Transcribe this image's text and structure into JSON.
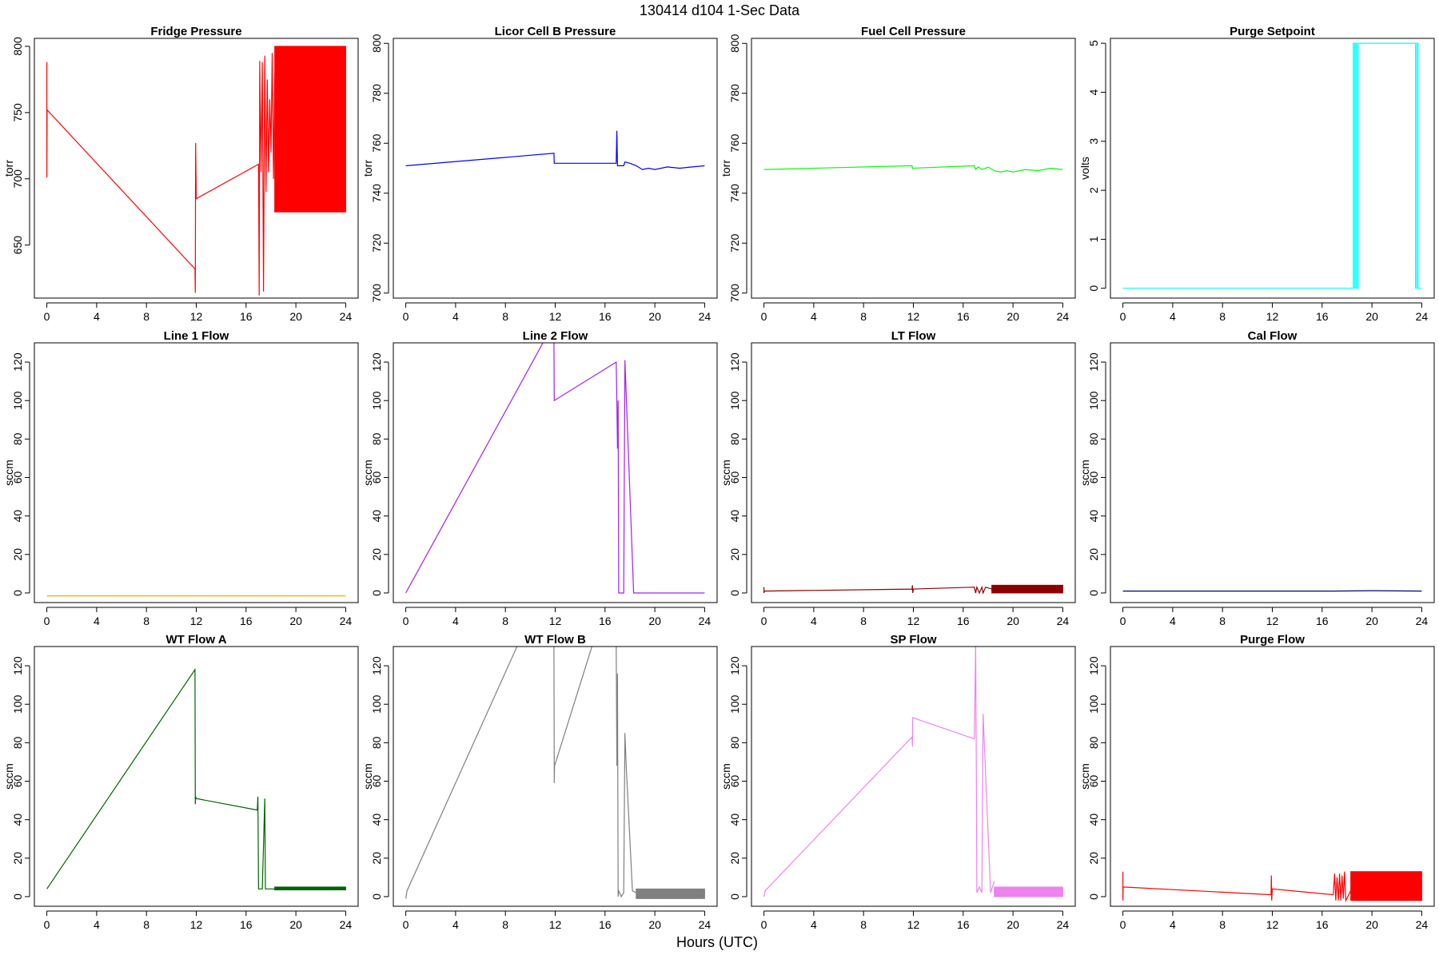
{
  "figure": {
    "title": "130414   d104   1-Sec Data",
    "xlabel": "Hours (UTC)"
  },
  "chart_data": [
    {
      "type": "line",
      "title": "Fridge Pressure",
      "ylabel": "torr",
      "color": "#ff0000",
      "xlim": [
        -1,
        25
      ],
      "ylim": [
        610,
        806
      ],
      "xticks": [
        0,
        4,
        8,
        12,
        16,
        20,
        24
      ],
      "yticks": [
        650,
        700,
        750,
        800
      ],
      "series": [
        {
          "x": [
            0,
            0,
            0.02,
            11.9,
            11.92,
            11.95,
            12,
            17,
            17.05,
            17.1,
            17.2,
            17.3,
            17.4,
            17.5,
            17.6,
            17.7,
            17.8,
            17.9,
            18,
            18.1,
            18.2,
            18.3
          ],
          "y": [
            788,
            701,
            752,
            632,
            614,
            727,
            685,
            711,
            612,
            789,
            705,
            788,
            615,
            793,
            690,
            775,
            705,
            760,
            720,
            795,
            700,
            780
          ]
        }
      ],
      "band": {
        "x0": 18.3,
        "x1": 24,
        "ymin": 675,
        "ymax": 800
      }
    },
    {
      "type": "line",
      "title": "Licor Cell B Pressure",
      "ylabel": "torr",
      "color": "#0000ff",
      "xlim": [
        -1,
        25
      ],
      "ylim": [
        698,
        802
      ],
      "xticks": [
        0,
        4,
        8,
        12,
        16,
        20,
        24
      ],
      "yticks": [
        700,
        720,
        740,
        760,
        780,
        800
      ],
      "series": [
        {
          "x": [
            0,
            11.9,
            11.92,
            16.9,
            16.95,
            17,
            17.05,
            17.1,
            17.5,
            17.6,
            18,
            18.5,
            19,
            19.5,
            20,
            21,
            22,
            23,
            24
          ],
          "y": [
            751,
            756,
            752,
            752,
            765,
            751,
            751,
            751,
            751,
            752.5,
            752,
            751,
            749.5,
            750,
            749.5,
            750.5,
            750,
            750.5,
            751
          ]
        }
      ]
    },
    {
      "type": "line",
      "title": "Fuel Cell Pressure",
      "ylabel": "torr",
      "color": "#00ff00",
      "xlim": [
        -1,
        25
      ],
      "ylim": [
        698,
        802
      ],
      "xticks": [
        0,
        4,
        8,
        12,
        16,
        20,
        24
      ],
      "yticks": [
        700,
        720,
        740,
        760,
        780,
        800
      ],
      "series": [
        {
          "x": [
            0,
            11.9,
            11.92,
            16.9,
            17,
            17.2,
            17.5,
            17.8,
            18,
            18.5,
            19,
            19.5,
            20,
            21,
            22,
            23,
            24
          ],
          "y": [
            749.5,
            751,
            750,
            751,
            749.5,
            750.5,
            749.5,
            750,
            750.5,
            749,
            748.5,
            749,
            748.5,
            749.5,
            749,
            750,
            749.5
          ]
        }
      ]
    },
    {
      "type": "line",
      "title": "Purge Setpoint",
      "ylabel": "volts",
      "color": "#00ffff",
      "xlim": [
        -1,
        25
      ],
      "ylim": [
        -0.2,
        5.1
      ],
      "xticks": [
        0,
        4,
        8,
        12,
        16,
        20,
        24
      ],
      "yticks": [
        0,
        1,
        2,
        3,
        4,
        5
      ],
      "series": [
        {
          "x": [
            0,
            18.5,
            18.5,
            18.6,
            18.6,
            18.7,
            18.7,
            18.8,
            18.8,
            18.9,
            18.9,
            23.5,
            23.5,
            23.6,
            23.6,
            23.7,
            23.7,
            24
          ],
          "y": [
            0,
            0,
            5,
            5,
            0,
            0,
            5,
            5,
            0,
            0,
            5,
            5,
            0,
            0,
            5,
            5,
            0,
            0
          ]
        }
      ]
    },
    {
      "type": "line",
      "title": "Line 1 Flow",
      "ylabel": "sccm",
      "color": "#ffa500",
      "xlim": [
        -1,
        25
      ],
      "ylim": [
        -5,
        130
      ],
      "xticks": [
        0,
        4,
        8,
        12,
        16,
        20,
        24
      ],
      "yticks": [
        0,
        20,
        40,
        60,
        80,
        100,
        120
      ],
      "series": [
        {
          "x": [
            0,
            12,
            17,
            24
          ],
          "y": [
            -1.5,
            -1.5,
            -1.5,
            -1.5
          ]
        }
      ]
    },
    {
      "type": "line",
      "title": "Line 2 Flow",
      "ylabel": "sccm",
      "color": "#a020f0",
      "xlim": [
        -1,
        25
      ],
      "ylim": [
        -5,
        130
      ],
      "xticks": [
        0,
        4,
        8,
        12,
        16,
        20,
        24
      ],
      "yticks": [
        0,
        20,
        40,
        60,
        80,
        100,
        120
      ],
      "series": [
        {
          "x": [
            0,
            11.1,
            11.9,
            11.92,
            16.9,
            16.95,
            17,
            17.05,
            17.1,
            17.3,
            17.5,
            17.6,
            18.3,
            24
          ],
          "y": [
            0,
            131,
            131,
            100,
            120,
            100,
            75,
            100,
            0,
            0,
            0,
            121,
            0,
            0
          ]
        }
      ]
    },
    {
      "type": "line",
      "title": "LT Flow",
      "ylabel": "sccm",
      "color": "#8b0000",
      "xlim": [
        -1,
        25
      ],
      "ylim": [
        -5,
        130
      ],
      "xticks": [
        0,
        4,
        8,
        12,
        16,
        20,
        24
      ],
      "yticks": [
        0,
        20,
        40,
        60,
        80,
        100,
        120
      ],
      "series": [
        {
          "x": [
            0,
            0,
            0.02,
            11.9,
            11.92,
            11.95,
            12,
            16.9,
            17,
            17.1,
            17.3,
            17.5,
            17.6,
            17.8,
            18.3
          ],
          "y": [
            3,
            0,
            1,
            2,
            4,
            0,
            2,
            3,
            0,
            3,
            0,
            3,
            0,
            3,
            2
          ]
        }
      ],
      "band": {
        "x0": 18.3,
        "x1": 24,
        "ymin": 0,
        "ymax": 4
      }
    },
    {
      "type": "line",
      "title": "Cal Flow",
      "ylabel": "sccm",
      "color": "#000080",
      "xlim": [
        -1,
        25
      ],
      "ylim": [
        -5,
        130
      ],
      "xticks": [
        0,
        4,
        8,
        12,
        16,
        20,
        24
      ],
      "yticks": [
        0,
        20,
        40,
        60,
        80,
        100,
        120
      ],
      "series": [
        {
          "x": [
            0,
            12,
            17,
            20,
            24
          ],
          "y": [
            1,
            1,
            1,
            1.2,
            1
          ]
        }
      ]
    },
    {
      "type": "line",
      "title": "WT Flow A",
      "ylabel": "sccm",
      "color": "#006400",
      "xlim": [
        -1,
        25
      ],
      "ylim": [
        -5,
        130
      ],
      "xticks": [
        0,
        4,
        8,
        12,
        16,
        20,
        24
      ],
      "yticks": [
        0,
        20,
        40,
        60,
        80,
        100,
        120
      ],
      "series": [
        {
          "x": [
            0,
            11.9,
            11.92,
            11.95,
            12,
            16.9,
            16.95,
            17,
            17.05,
            17.3,
            17.5,
            17.55,
            18.3,
            24
          ],
          "y": [
            4,
            118,
            48,
            52,
            51,
            45,
            52,
            4,
            4,
            4,
            51,
            4,
            4,
            4
          ]
        }
      ],
      "band": {
        "x0": 18.3,
        "x1": 24,
        "ymin": 3.5,
        "ymax": 5
      }
    },
    {
      "type": "line",
      "title": "WT Flow B",
      "ylabel": "sccm",
      "color": "#808080",
      "xlim": [
        -1,
        25
      ],
      "ylim": [
        -5,
        130
      ],
      "xticks": [
        0,
        4,
        8,
        12,
        16,
        20,
        24
      ],
      "yticks": [
        0,
        20,
        40,
        60,
        80,
        100,
        120
      ],
      "series": [
        {
          "x": [
            0,
            0.1,
            9,
            11.9,
            11.92,
            11.95,
            15,
            16.9,
            16.95,
            17,
            17.05,
            17.1,
            17.3,
            17.5,
            17.6,
            17.7,
            18.2,
            18.5
          ],
          "y": [
            -1,
            3,
            131,
            131,
            59,
            68,
            131,
            131,
            68,
            116,
            0,
            3,
            0,
            2,
            85,
            68,
            3,
            2
          ]
        }
      ],
      "band": {
        "x0": 18.5,
        "x1": 24,
        "ymin": -1,
        "ymax": 4
      }
    },
    {
      "type": "line",
      "title": "SP Flow",
      "ylabel": "sccm",
      "color": "#ee82ee",
      "xlim": [
        -1,
        25
      ],
      "ylim": [
        -5,
        130
      ],
      "xticks": [
        0,
        4,
        8,
        12,
        16,
        20,
        24
      ],
      "yticks": [
        0,
        20,
        40,
        60,
        80,
        100,
        120
      ],
      "series": [
        {
          "x": [
            0,
            0.1,
            11.9,
            11.92,
            11.95,
            16.9,
            17,
            17.05,
            17.1,
            17.3,
            17.5,
            17.6,
            18.2,
            18.5
          ],
          "y": [
            0,
            3,
            83,
            78,
            93,
            82,
            131,
            72,
            2,
            5,
            2,
            95,
            2,
            8
          ]
        }
      ],
      "band": {
        "x0": 18.5,
        "x1": 24,
        "ymin": 0,
        "ymax": 5
      }
    },
    {
      "type": "line",
      "title": "Purge Flow",
      "ylabel": "sccm",
      "color": "#ff0000",
      "xlim": [
        -1,
        25
      ],
      "ylim": [
        -5,
        130
      ],
      "xticks": [
        0,
        4,
        8,
        12,
        16,
        20,
        24
      ],
      "yticks": [
        0,
        20,
        40,
        60,
        80,
        100,
        120
      ],
      "series": [
        {
          "x": [
            0,
            0,
            0.02,
            11.9,
            11.92,
            11.95,
            12,
            16.9,
            17,
            17.1,
            17.2,
            17.3,
            17.4,
            17.5,
            17.6,
            17.7,
            17.8,
            17.9,
            18.3
          ],
          "y": [
            13,
            -2,
            5,
            1,
            11,
            -2,
            4,
            1,
            12,
            -2,
            10,
            -2,
            12,
            -2,
            11,
            -1,
            13,
            -2,
            3
          ]
        }
      ],
      "band": {
        "x0": 18.3,
        "x1": 24,
        "ymin": -2,
        "ymax": 13
      }
    }
  ]
}
